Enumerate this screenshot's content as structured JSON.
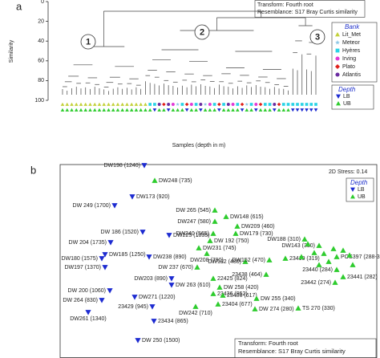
{
  "chart_data": [
    {
      "type": "dendrogram",
      "panel": "a",
      "ylabel": "Similarity",
      "xlabel": "Samples (depth in m)",
      "ylim": [
        0,
        100
      ],
      "yticks": [
        0,
        20,
        40,
        60,
        80,
        100
      ],
      "transform": "Transform: Fourth root",
      "resemblance": "Resemblance: S17 Bray Curtis similarity",
      "clusters": [
        "1",
        "2",
        "3"
      ],
      "bank_title": "Bank",
      "banks": [
        {
          "name": "Lit_Met",
          "color": "#c3d13a",
          "marker": "triangle"
        },
        {
          "name": "Meteor",
          "color": "#8fc8e6",
          "marker": "star"
        },
        {
          "name": "Hyères",
          "color": "#29d3e6",
          "marker": "square"
        },
        {
          "name": "Irving",
          "color": "#e23ad6",
          "marker": "circle"
        },
        {
          "name": "Plato",
          "color": "#e0201a",
          "marker": "diamond"
        },
        {
          "name": "Atlantis",
          "color": "#6a2ca0",
          "marker": "circle"
        }
      ],
      "depth_title": "Depth",
      "depths": [
        {
          "name": "LB",
          "color": "#1d2bd1",
          "marker": "down-triangle"
        },
        {
          "name": "UB",
          "color": "#2ecc2e",
          "marker": "triangle"
        }
      ],
      "sample_bank": [
        0,
        0,
        0,
        0,
        0,
        0,
        0,
        0,
        0,
        0,
        0,
        0,
        0,
        0,
        0,
        0,
        0,
        0,
        0,
        2,
        2,
        5,
        4,
        5,
        3,
        1,
        2,
        4,
        3,
        2,
        5,
        1,
        3,
        2,
        4,
        2,
        5,
        3,
        2,
        4,
        1,
        2,
        3,
        4,
        2,
        2,
        5,
        4,
        2,
        2,
        2,
        2,
        2,
        2,
        2,
        2
      ],
      "sample_depth": [
        1,
        1,
        1,
        1,
        1,
        1,
        1,
        1,
        1,
        1,
        1,
        1,
        1,
        1,
        1,
        1,
        1,
        1,
        1,
        1,
        0,
        1,
        1,
        0,
        1,
        1,
        1,
        0,
        1,
        1,
        0,
        1,
        1,
        1,
        0,
        1,
        1,
        1,
        1,
        0,
        1,
        1,
        0,
        1,
        1,
        1,
        0,
        1,
        1,
        1,
        0,
        0,
        0,
        0,
        0,
        0
      ]
    },
    {
      "type": "scatter",
      "panel": "b",
      "stress": "2D Stress: 0.14",
      "transform": "Transform: Fourth root",
      "resemblance": "Resemblance: S17 Bray Curtis similarity",
      "legend_title": "Depth",
      "xlim": [
        0,
        395
      ],
      "ylim": [
        0,
        241
      ],
      "series": [
        {
          "name": "LB",
          "color": "#1d2bd1",
          "marker": "down-triangle",
          "x": [
            105,
            90,
            68,
            103,
            136,
            63,
            56,
            111,
            52,
            56,
            139,
            139,
            62,
            52,
            93,
            115,
            35,
            117,
            97
          ],
          "y": [
            240,
            201,
            190,
            157,
            153,
            144,
            129,
            126,
            124,
            113,
            99,
            91,
            84,
            72,
            76,
            64,
            57,
            46,
            22
          ],
          "labels": [
            "DW198 (1240)",
            "DW173 (920)",
            "DW 249 (1700)",
            "DW 186 (1520)",
            "DW225 (1035)",
            "DW 204 (1735)",
            "DW185 (1250)",
            "DW238 (890)",
            "DW180 (1575)",
            "DW197 (1370)",
            "DW203 (890)",
            "DW 263 (610)",
            "DW 200 (1060)",
            "DW 264 (830)",
            "DW271 (1220)",
            "23429 (945)",
            "DW261 (1340)",
            "23434 (865)",
            "DW 250 (1500)"
          ]
        },
        {
          "name": "UB",
          "color": "#2ecc2e",
          "marker": "triangle",
          "x": [
            118,
            193,
            207,
            221,
            193,
            191,
            219,
            305,
            187,
            173,
            323,
            183,
            231,
            261,
            281,
            345,
            171,
            345,
            353,
            257,
            343,
            191,
            199,
            191,
            203,
            245,
            197,
            297,
            169,
            243,
            309,
            317,
            329,
            341,
            353,
            361,
            301,
            335,
            365,
            323
          ],
          "y": [
            221,
            184,
            176,
            164,
            170,
            155,
            155,
            148,
            146,
            137,
            140,
            130,
            120,
            122,
            124,
            126,
            113,
            110,
            101,
            104,
            94,
            99,
            88,
            80,
            78,
            74,
            67,
            62,
            64,
            61,
            142,
            131,
            130,
            136,
            134,
            128,
            126,
            120,
            116,
            116
          ],
          "labels": [
            "DW248 (735)",
            "DW 265 (545)",
            "DW148 (615)",
            "DW209 (460)",
            "DW247 (580)",
            "DW240 (565)",
            "DW179 (730)",
            "DW188 (310)",
            "DW 192 (750)",
            "DW231 (745)",
            "DW143 (330)",
            "DW208 (790)",
            "DW182 (480)",
            "DW152 (470)",
            "23419 (319)",
            "POS397 (288-315)",
            "DW 237 (670)",
            "23440 (284)",
            "23441 (282)",
            "23438 (464)",
            "23442 (274)",
            "22425 (824)",
            "DW 258 (420)",
            "23436 (952)",
            "23408 (617)",
            "DW 255 (340)",
            "23404 (677)",
            "TS 270 (330)",
            "DW242 (710)",
            "DW 274 (280)",
            null,
            null,
            null,
            null,
            null,
            null,
            null,
            null,
            null,
            null
          ]
        }
      ]
    }
  ]
}
